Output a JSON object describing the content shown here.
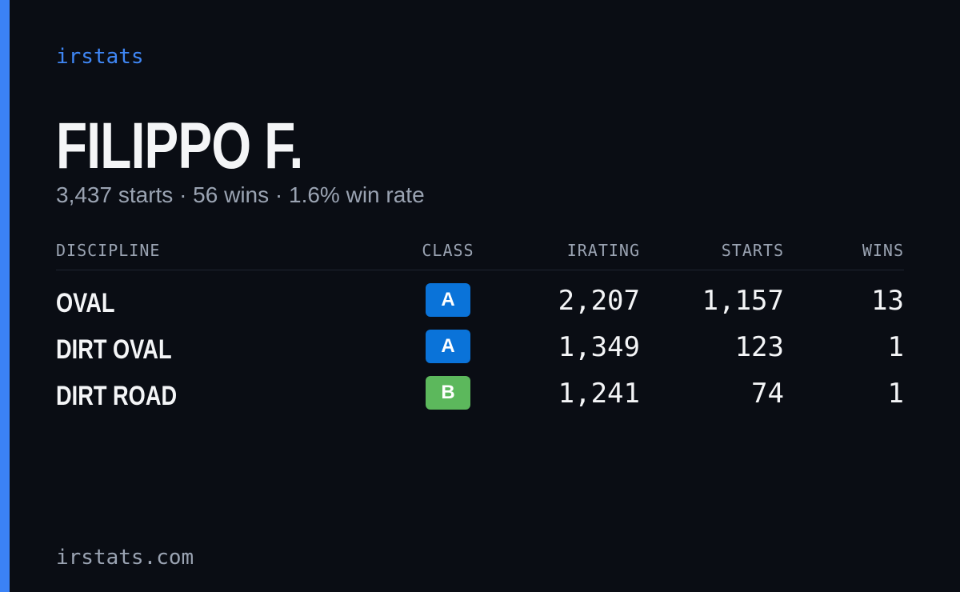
{
  "brand": "irstats",
  "profile": {
    "name": "FILIPPO F.",
    "summary": "3,437 starts · 56 wins · 1.6% win rate"
  },
  "table": {
    "headers": [
      "DISCIPLINE",
      "CLASS",
      "IRATING",
      "STARTS",
      "WINS"
    ],
    "rows": [
      [
        "OVAL",
        "A",
        "2,207",
        "1,157",
        "13"
      ],
      [
        "DIRT OVAL",
        "A",
        "1,349",
        "123",
        "1"
      ],
      [
        "DIRT ROAD",
        "B",
        "1,241",
        "74",
        "1"
      ]
    ],
    "class_colors": {
      "A": "#0a73d9",
      "B": "#5cb85c"
    }
  },
  "footer": "irstats.com"
}
